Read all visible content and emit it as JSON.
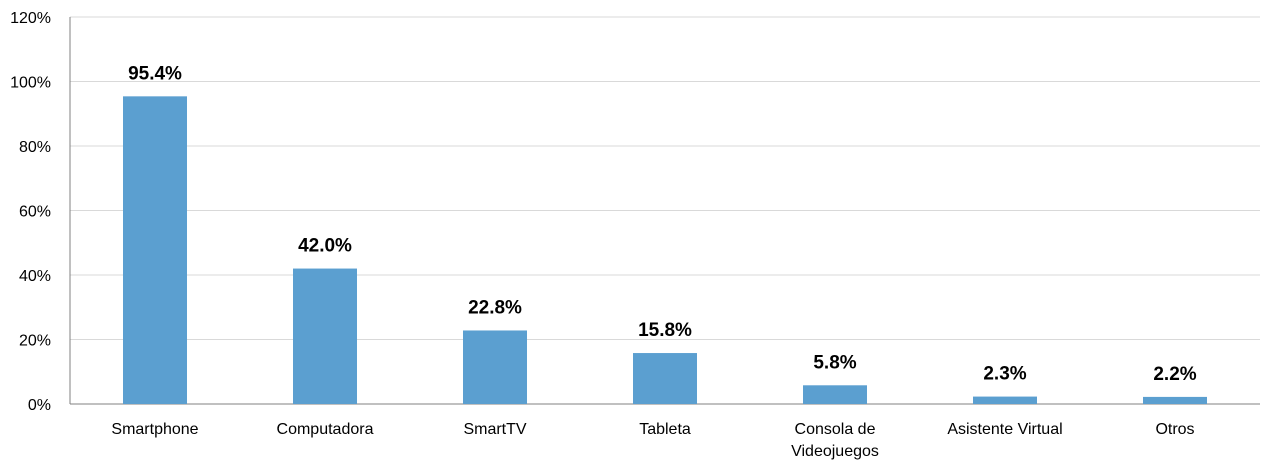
{
  "chart_data": {
    "type": "bar",
    "categories": [
      "Smartphone",
      "Computadora",
      "SmartTV",
      "Tableta",
      "Consola de Videojuegos",
      "Asistente Virtual",
      "Otros"
    ],
    "category_lines": [
      [
        "Smartphone"
      ],
      [
        "Computadora"
      ],
      [
        "SmartTV"
      ],
      [
        "Tableta"
      ],
      [
        "Consola de",
        "Videojuegos"
      ],
      [
        "Asistente Virtual"
      ],
      [
        "Otros"
      ]
    ],
    "values": [
      95.4,
      42.0,
      22.8,
      15.8,
      5.8,
      2.3,
      2.2
    ],
    "data_labels": [
      "95.4%",
      "42.0%",
      "22.8%",
      "15.8%",
      "5.8%",
      "2.3%",
      "2.2%"
    ],
    "y_ticks": [
      "0%",
      "20%",
      "40%",
      "60%",
      "80%",
      "100%",
      "120%"
    ],
    "ylim": [
      0,
      120
    ],
    "grid": true,
    "legend": "none",
    "bar_color": "#5b9fd0"
  }
}
